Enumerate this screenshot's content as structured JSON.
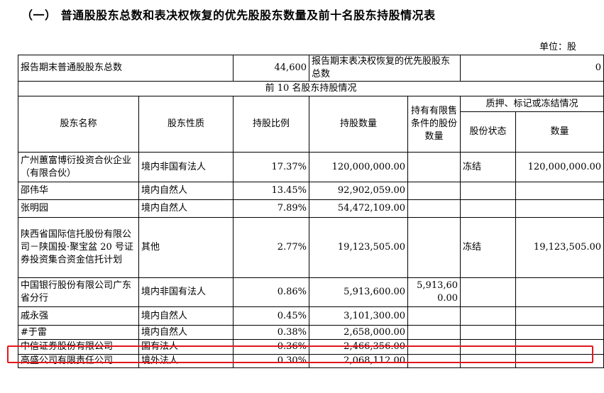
{
  "section_title": "（一）  普通股股东总数和表决权恢复的优先股股东数量及前十名股东持股情况表",
  "unit_label": "单位：股",
  "summary": {
    "common_label": "报告期末普通股股东总数",
    "common_value": "44,600",
    "preferred_label": "报告期末表决权恢复的优先股股东总数",
    "preferred_value": "0"
  },
  "top10_caption": "前 10 名股东持股情况",
  "headers": {
    "name": "股东名称",
    "nature": "股东性质",
    "ratio": "持股比例",
    "quantity": "持股数量",
    "restricted": "持有有限售条件的股份数量",
    "pledge_group": "质押、标记或冻结情况",
    "status": "股份状态",
    "amount": "数量"
  },
  "rows": [
    {
      "name": "广州蕙富博衍投资合伙企业（有限合伙）",
      "nature": "境内非国有法人",
      "ratio": "17.37%",
      "quantity": "120,000,000.00",
      "restricted": "",
      "status": "冻结",
      "amount": "120,000,000.00"
    },
    {
      "name": "邵伟华",
      "nature": "境内自然人",
      "ratio": "13.45%",
      "quantity": "92,902,059.00",
      "restricted": "",
      "status": "",
      "amount": ""
    },
    {
      "name": "张明园",
      "nature": "境内自然人",
      "ratio": "7.89%",
      "quantity": "54,472,109.00",
      "restricted": "",
      "status": "",
      "amount": ""
    },
    {
      "name": "陕西省国际信托股份有限公司－陕国投·聚宝盆 20 号证券投资集合资金信托计划",
      "nature": "其他",
      "ratio": "2.77%",
      "quantity": "19,123,505.00",
      "restricted": "",
      "status": "冻结",
      "amount": "19,123,505.00"
    },
    {
      "name": "中国银行股份有限公司广东省分行",
      "nature": "境内非国有法人",
      "ratio": "0.86%",
      "quantity": "5,913,600.00",
      "restricted": "5,913,600.00",
      "status": "",
      "amount": ""
    },
    {
      "name": "戚永强",
      "nature": "境内自然人",
      "ratio": "0.45%",
      "quantity": "3,101,300.00",
      "restricted": "",
      "status": "",
      "amount": ""
    },
    {
      "name": "#于雷",
      "nature": "境内自然人",
      "ratio": "0.38%",
      "quantity": "2,658,000.00",
      "restricted": "",
      "status": "",
      "amount": ""
    },
    {
      "name": "中信证券股份有限公司",
      "nature": "国有法人",
      "ratio": "0.36%",
      "quantity": "2,466,356.00",
      "restricted": "",
      "status": "",
      "amount": ""
    },
    {
      "name": "高盛公司有限责任公司",
      "nature": "境外法人",
      "ratio": "0.30%",
      "quantity": "2,068,112.00",
      "restricted": "",
      "status": "",
      "amount": ""
    }
  ],
  "highlight_color": "#e4161b"
}
